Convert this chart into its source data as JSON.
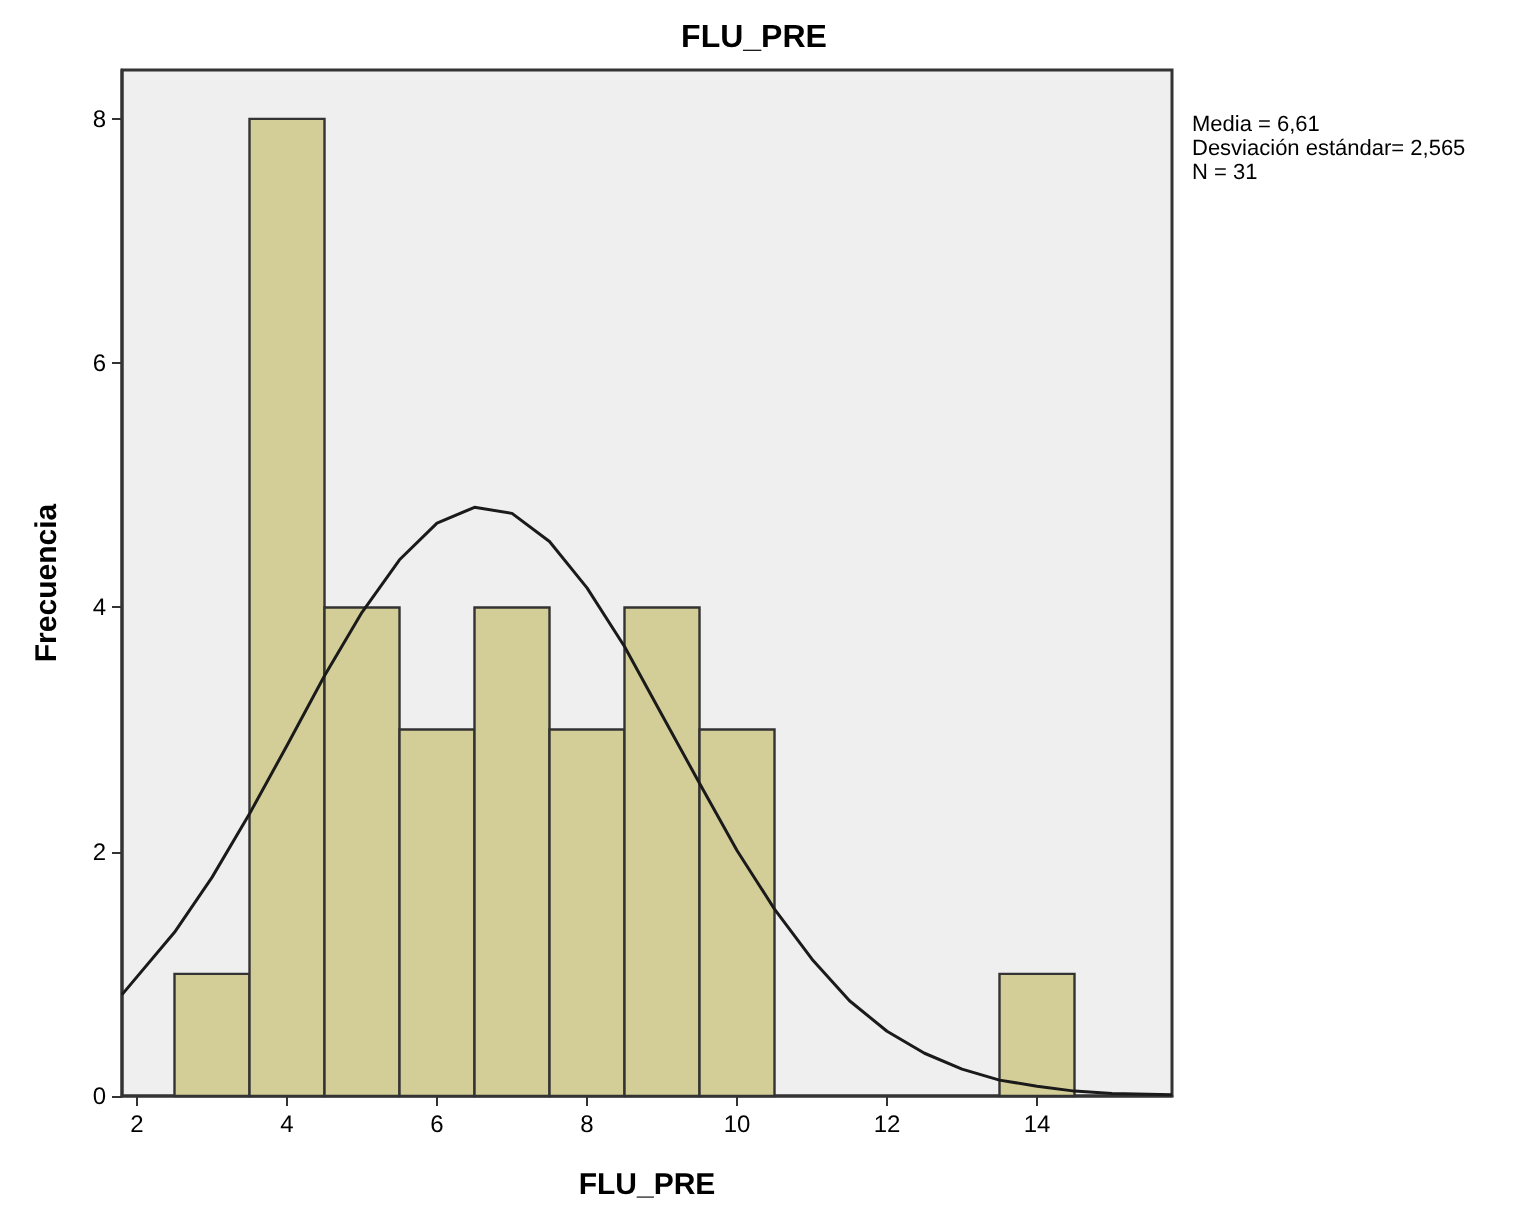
{
  "chart_data": {
    "type": "histogram",
    "title": "FLU_PRE",
    "xlabel": "FLU_PRE",
    "ylabel": "Frecuencia",
    "annotations": [
      "Media = 6,61",
      "Desviación estándar= 2,565",
      "N = 31"
    ],
    "bins": [
      2.5,
      3.5,
      4.5,
      5.5,
      6.5,
      7.5,
      8.5,
      9.5,
      10.5,
      11.5,
      12.5,
      13.5,
      14.5
    ],
    "series": [
      {
        "color": "#d3ce97",
        "values": [
          1,
          8,
          4,
          3,
          4,
          3,
          4,
          3,
          0,
          0,
          0,
          1
        ]
      },
      {
        "type": "line",
        "color": "#1a1a1a",
        "x": [
          1.8,
          2.5,
          3,
          3.5,
          4,
          4.5,
          5,
          5.5,
          6,
          6.5,
          7,
          7.5,
          8,
          8.5,
          9,
          9.5,
          10,
          10.5,
          11,
          11.5,
          12,
          12.5,
          13,
          13.5,
          14,
          14.5,
          15,
          15.8
        ],
        "values": [
          0.83,
          1.34,
          1.79,
          2.31,
          2.87,
          3.44,
          3.96,
          4.39,
          4.69,
          4.82,
          4.77,
          4.54,
          4.16,
          3.68,
          3.12,
          2.56,
          2.01,
          1.53,
          1.12,
          0.78,
          0.53,
          0.35,
          0.22,
          0.13,
          0.08,
          0.04,
          0.02,
          0.01
        ]
      }
    ],
    "xlim": [
      1.8,
      15.8
    ],
    "xticks": [
      2,
      4,
      6,
      8,
      10,
      12,
      14
    ],
    "ylim": [
      0,
      8.4
    ],
    "yticks": [
      0,
      2,
      4,
      6,
      8
    ],
    "grid": false,
    "marker": "none"
  }
}
